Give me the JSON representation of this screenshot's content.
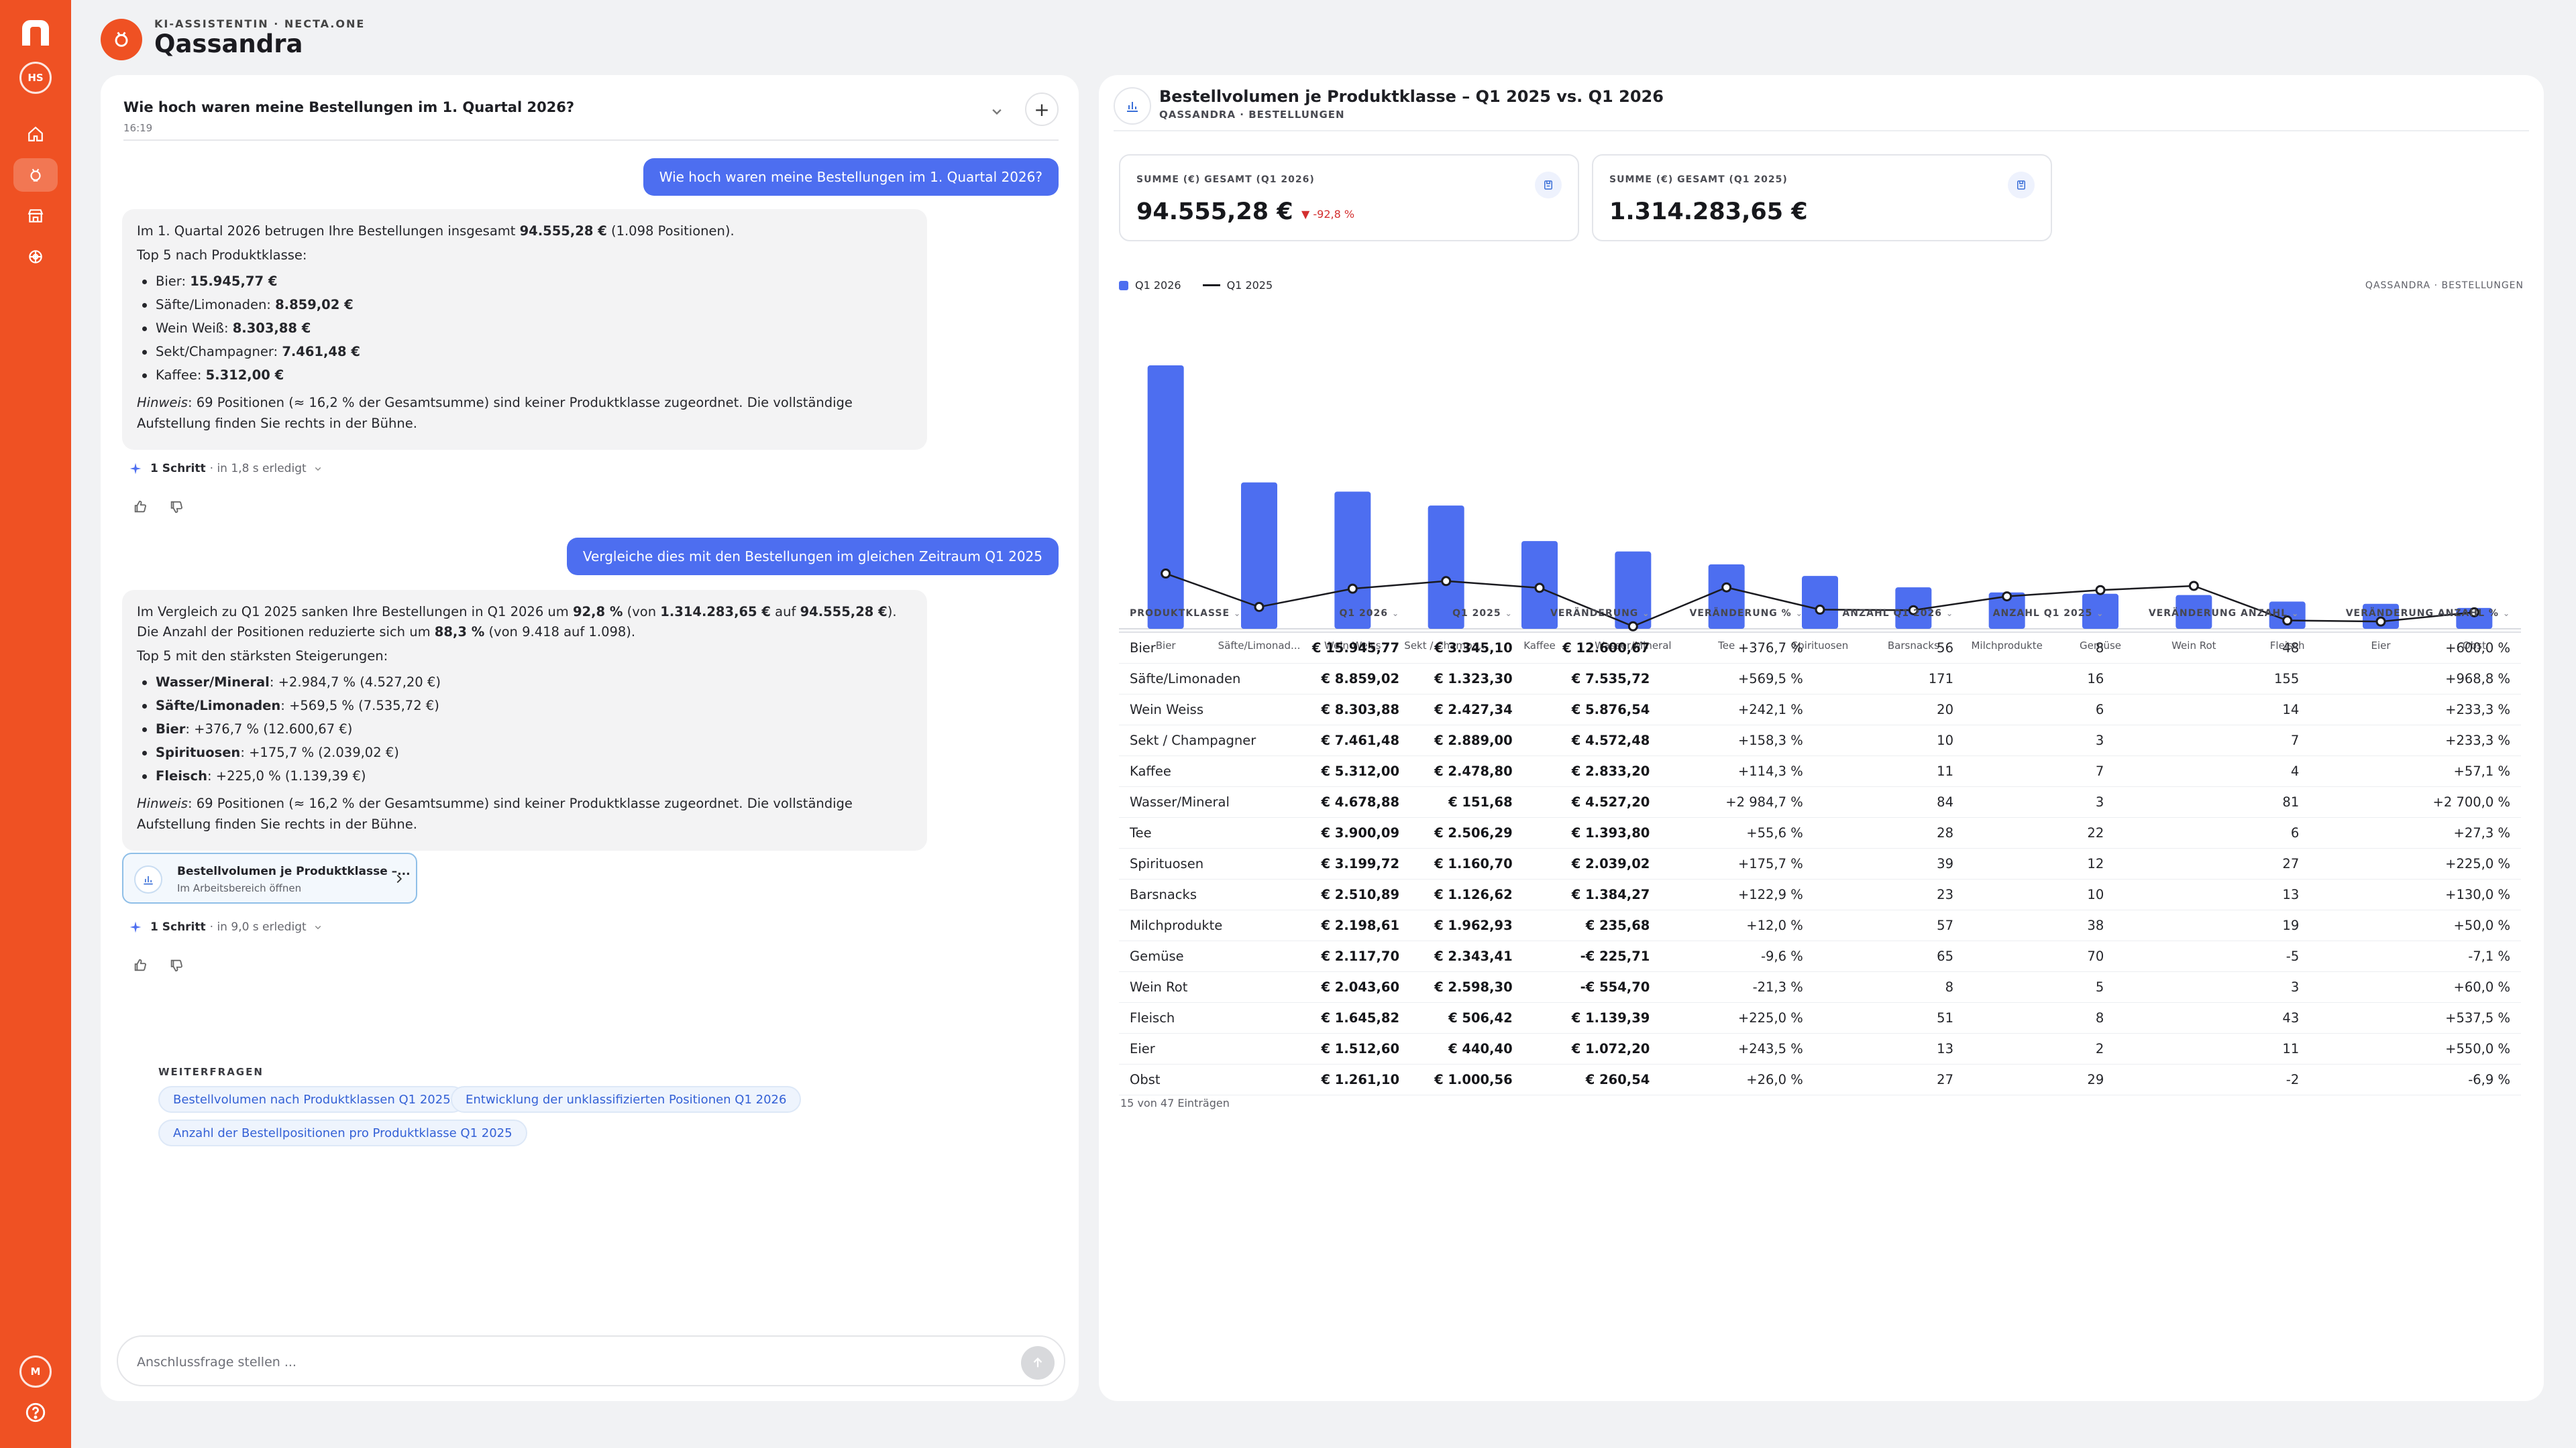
{
  "sidebar": {
    "user_initials": "HS",
    "bottom_initial": "M",
    "nav_icons": [
      "home-icon",
      "assistant-icon",
      "store-icon",
      "globe-icon"
    ],
    "active_index": 1
  },
  "header": {
    "eyebrow": "KI-ASSISTENTIN · NECTA.ONE",
    "title": "Qassandra"
  },
  "chat": {
    "conversation_title": "Wie hoch waren meine Bestellungen im 1. Quartal 2026?",
    "conversation_time": "16:19",
    "messages": [
      {
        "role": "user",
        "text": "Wie hoch waren meine Bestellungen im 1. Quartal 2026?"
      },
      {
        "role": "assistant",
        "intro_pre": "Im 1. Quartal 2026 betrugen Ihre Bestellungen insgesamt ",
        "intro_bold": "94.555,28 €",
        "intro_post": " (1.098 Positionen).",
        "list_heading": "Top 5 nach Produktklasse:",
        "items": [
          {
            "label": "Bier: ",
            "value": "15.945,77 €"
          },
          {
            "label": "Säfte/Limonaden: ",
            "value": "8.859,02 €"
          },
          {
            "label": "Wein Weiß: ",
            "value": "8.303,88 €"
          },
          {
            "label": "Sekt/Champagner: ",
            "value": "7.461,48 €"
          },
          {
            "label": "Kaffee: ",
            "value": "5.312,00 €"
          }
        ],
        "hint_label": "Hinweis",
        "hint_text": ": 69 Positionen (≈ 16,2 % der Gesamtsumme) sind keiner Produktklasse zugeordnet. Die vollständige Aufstellung finden Sie rechts in der Bühne.",
        "step_bold": "1 Schritt",
        "step_text": "· in 1,8 s erledigt"
      },
      {
        "role": "user",
        "text": "Vergleiche dies mit den Bestellungen im gleichen Zeitraum Q1 2025"
      },
      {
        "role": "assistant",
        "line1_pre": "Im Vergleich zu Q1 2025 sanken Ihre Bestellungen in Q1 2026 um ",
        "line1_b1": "92,8 %",
        "line1_mid": " (von ",
        "line1_b2": "1.314.283,65 €",
        "line1_mid2": " auf ",
        "line1_b3": "94.555,28 €",
        "line1_post": ").",
        "line2_pre": "Die Anzahl der Positionen reduzierte sich um ",
        "line2_b": "88,3 %",
        "line2_post": " (von 9.418 auf 1.098).",
        "list_heading": "Top 5 mit den stärksten Steigerungen:",
        "items": [
          {
            "label": "Wasser/Mineral",
            "value": ": +2.984,7 % (4.527,20 €)"
          },
          {
            "label": "Säfte/Limonaden",
            "value": ": +569,5 % (7.535,72 €)"
          },
          {
            "label": "Bier",
            "value": ": +376,7 % (12.600,67 €)"
          },
          {
            "label": "Spirituosen",
            "value": ": +175,7 % (2.039,02 €)"
          },
          {
            "label": "Fleisch",
            "value": ": +225,0 % (1.139,39 €)"
          }
        ],
        "hint_label": "Hinweis",
        "hint_text": ": 69 Positionen (≈ 16,2 % der Gesamtsumme) sind keiner Produktklasse zugeordnet. Die vollständige Aufstellung finden Sie rechts in der Bühne.",
        "artifact_title": "Bestellvolumen je Produktklasse –...",
        "artifact_sub": "Im Arbeitsbereich öffnen",
        "step_bold": "1 Schritt",
        "step_text": "· in 9,0 s erledigt"
      }
    ],
    "followups_label": "WEITERFRAGEN",
    "followups": [
      "Bestellvolumen nach Produktklassen Q1 2025",
      "Entwicklung der unklassifizierten Positionen Q1 2026",
      "Anzahl der Bestellpositionen pro Produktklasse Q1 2025"
    ],
    "composer_placeholder": "Anschlussfrage stellen ..."
  },
  "workspace": {
    "title": "Bestellvolumen je Produktklasse – Q1 2025 vs. Q1 2026",
    "subtitle": "QASSANDRA · BESTELLUNGEN",
    "kpis": [
      {
        "label": "SUMME (€) GESAMT (Q1 2026)",
        "value": "94.555,28 €",
        "delta": "▼ -92,8 %"
      },
      {
        "label": "SUMME (€) GESAMT (Q1 2025)",
        "value": "1.314.283,65 €",
        "delta": ""
      }
    ],
    "chart_source": "QASSANDRA · BESTELLUNGEN",
    "table": {
      "headers": [
        "PRODUKTKLASSE",
        "Q1 2026",
        "Q1 2025",
        "VERÄNDERUNG",
        "VERÄNDERUNG %",
        "ANZAHL Q1 2026",
        "ANZAHL Q1 2025",
        "VERÄNDERUNG ANZAHL",
        "VERÄNDERUNG ANZAHL %"
      ],
      "rows": [
        [
          "Bier",
          "€ 15.945,77",
          "€ 3.345,10",
          "€ 12.600,67",
          "+376,7 %",
          "56",
          "8",
          "48",
          "+600,0 %"
        ],
        [
          "Säfte/Limonaden",
          "€ 8.859,02",
          "€ 1.323,30",
          "€ 7.535,72",
          "+569,5 %",
          "171",
          "16",
          "155",
          "+968,8 %"
        ],
        [
          "Wein Weiss",
          "€ 8.303,88",
          "€ 2.427,34",
          "€ 5.876,54",
          "+242,1 %",
          "20",
          "6",
          "14",
          "+233,3 %"
        ],
        [
          "Sekt / Champagner",
          "€ 7.461,48",
          "€ 2.889,00",
          "€ 4.572,48",
          "+158,3 %",
          "10",
          "3",
          "7",
          "+233,3 %"
        ],
        [
          "Kaffee",
          "€ 5.312,00",
          "€ 2.478,80",
          "€ 2.833,20",
          "+114,3 %",
          "11",
          "7",
          "4",
          "+57,1 %"
        ],
        [
          "Wasser/Mineral",
          "€ 4.678,88",
          "€ 151,68",
          "€ 4.527,20",
          "+2 984,7 %",
          "84",
          "3",
          "81",
          "+2 700,0 %"
        ],
        [
          "Tee",
          "€ 3.900,09",
          "€ 2.506,29",
          "€ 1.393,80",
          "+55,6 %",
          "28",
          "22",
          "6",
          "+27,3 %"
        ],
        [
          "Spirituosen",
          "€ 3.199,72",
          "€ 1.160,70",
          "€ 2.039,02",
          "+175,7 %",
          "39",
          "12",
          "27",
          "+225,0 %"
        ],
        [
          "Barsnacks",
          "€ 2.510,89",
          "€ 1.126,62",
          "€ 1.384,27",
          "+122,9 %",
          "23",
          "10",
          "13",
          "+130,0 %"
        ],
        [
          "Milchprodukte",
          "€ 2.198,61",
          "€ 1.962,93",
          "€ 235,68",
          "+12,0 %",
          "57",
          "38",
          "19",
          "+50,0 %"
        ],
        [
          "Gemüse",
          "€ 2.117,70",
          "€ 2.343,41",
          "-€ 225,71",
          "-9,6 %",
          "65",
          "70",
          "-5",
          "-7,1 %"
        ],
        [
          "Wein Rot",
          "€ 2.043,60",
          "€ 2.598,30",
          "-€ 554,70",
          "-21,3 %",
          "8",
          "5",
          "3",
          "+60,0 %"
        ],
        [
          "Fleisch",
          "€ 1.645,82",
          "€ 506,42",
          "€ 1.139,39",
          "+225,0 %",
          "51",
          "8",
          "43",
          "+537,5 %"
        ],
        [
          "Eier",
          "€ 1.512,60",
          "€ 440,40",
          "€ 1.072,20",
          "+243,5 %",
          "13",
          "2",
          "11",
          "+550,0 %"
        ],
        [
          "Obst",
          "€ 1.261,10",
          "€ 1.000,56",
          "€ 260,54",
          "+26,0 %",
          "27",
          "29",
          "-2",
          "-6,9 %"
        ]
      ],
      "footer": "15 von 47 Einträgen"
    }
  },
  "chart_data": {
    "type": "bar",
    "categories": [
      "Bier",
      "Säfte/Limonad...",
      "Wein Weiss",
      "Sekt / Champa...",
      "Kaffee",
      "Wasser/Mineral",
      "Tee",
      "Spirituosen",
      "Barsnacks",
      "Milchprodukte",
      "Gemüse",
      "Wein Rot",
      "Fleisch",
      "Eier",
      "Obst"
    ],
    "series": [
      {
        "name": "Q1 2026",
        "type": "bar",
        "color": "#4d6ef0",
        "values": [
          15945.77,
          8859.02,
          8303.88,
          7461.48,
          5312.0,
          4678.88,
          3900.09,
          3199.72,
          2510.89,
          2198.61,
          2117.7,
          2043.6,
          1645.82,
          1512.6,
          1261.1
        ]
      },
      {
        "name": "Q1 2025",
        "type": "line",
        "color": "#1b1b20",
        "values": [
          3345.1,
          1323.3,
          2427.34,
          2889.0,
          2478.8,
          151.68,
          2506.29,
          1160.7,
          1126.62,
          1962.93,
          2343.41,
          2598.3,
          506.42,
          440.4,
          1000.56
        ]
      }
    ],
    "legend": "top-left",
    "grid": false,
    "ylim": [
      0,
      18500
    ]
  }
}
